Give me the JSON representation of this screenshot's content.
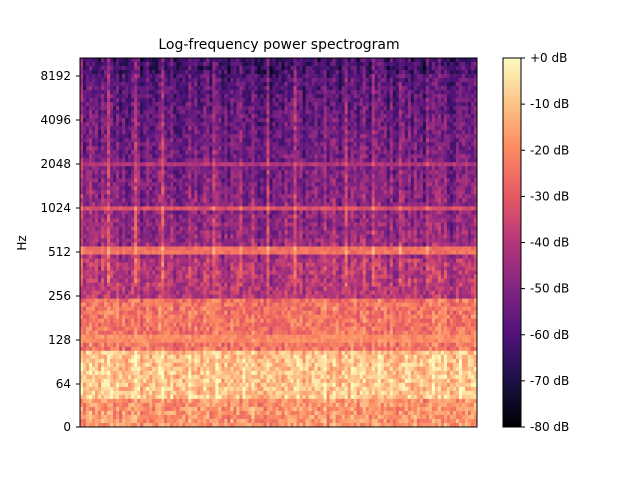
{
  "chart_data": {
    "type": "heatmap",
    "title": "Log-frequency power spectrogram",
    "xlabel": "",
    "ylabel": "Hz",
    "y_scale": "log",
    "y_ticks": [
      "8192",
      "4096",
      "2048",
      "1024",
      "512",
      "256",
      "128",
      "64",
      "0"
    ],
    "y_tick_values": [
      8192,
      4096,
      2048,
      1024,
      512,
      256,
      128,
      64,
      0
    ],
    "ylim": [
      0,
      11025
    ],
    "x_ticks": [],
    "colorbar": {
      "label_ticks": [
        "+0 dB",
        "-10 dB",
        "-20 dB",
        "-30 dB",
        "-40 dB",
        "-50 dB",
        "-60 dB",
        "-70 dB",
        "-80 dB"
      ],
      "tick_values": [
        0,
        -10,
        -20,
        -30,
        -40,
        -50,
        -60,
        -70,
        -80
      ],
      "range": [
        -80,
        0
      ],
      "colormap": "magma"
    },
    "value_range_db": [
      -80,
      0
    ],
    "beats_visible": 15,
    "dominant_bands": [
      {
        "freq_hz": 64,
        "level_db": -5
      },
      {
        "freq_hz": 128,
        "level_db": -20
      },
      {
        "freq_hz": 512,
        "level_db": -25
      },
      {
        "freq_hz": 1024,
        "level_db": -32
      },
      {
        "freq_hz": 2048,
        "level_db": -40
      }
    ],
    "grid": false
  },
  "colors": {
    "magma_stops": [
      "#000004",
      "#1c1044",
      "#4f127b",
      "#812581",
      "#b5367a",
      "#e55964",
      "#fb8761",
      "#fec287",
      "#fcfdbf"
    ]
  }
}
